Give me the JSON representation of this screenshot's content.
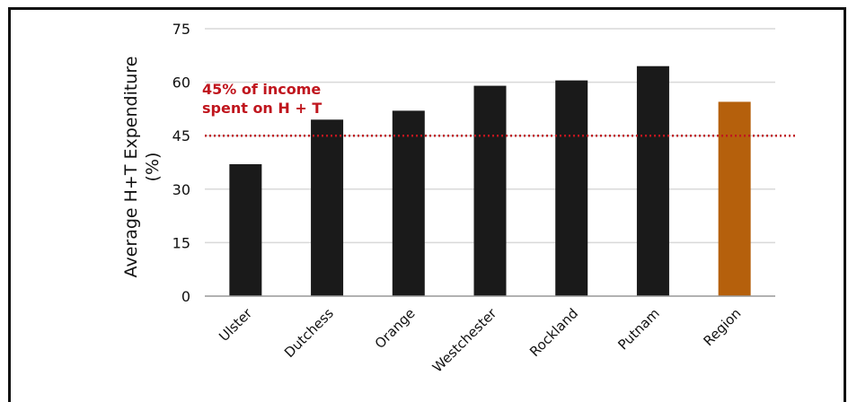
{
  "chart_data": {
    "type": "bar",
    "categories": [
      "Ulster",
      "Dutchess",
      "Orange",
      "Westchester",
      "Rockland",
      "Putnam",
      "Region"
    ],
    "values": [
      37,
      49.5,
      52,
      59,
      60.5,
      64.5,
      54.5
    ],
    "highlight_index": 6,
    "colors": {
      "bar": "#1a1a1a",
      "highlight": "#b5600c",
      "threshold": "#c0161e",
      "grid": "#d9d9d9"
    },
    "ylabel_line1": "Average H+T Expenditure",
    "ylabel_line2": "(%)",
    "yticks": [
      0,
      15,
      30,
      45,
      60,
      75
    ],
    "ylim": [
      0,
      75
    ],
    "threshold": {
      "value": 45,
      "label_line1": "45% of income",
      "label_line2": "spent on H + T"
    },
    "grid": true
  }
}
